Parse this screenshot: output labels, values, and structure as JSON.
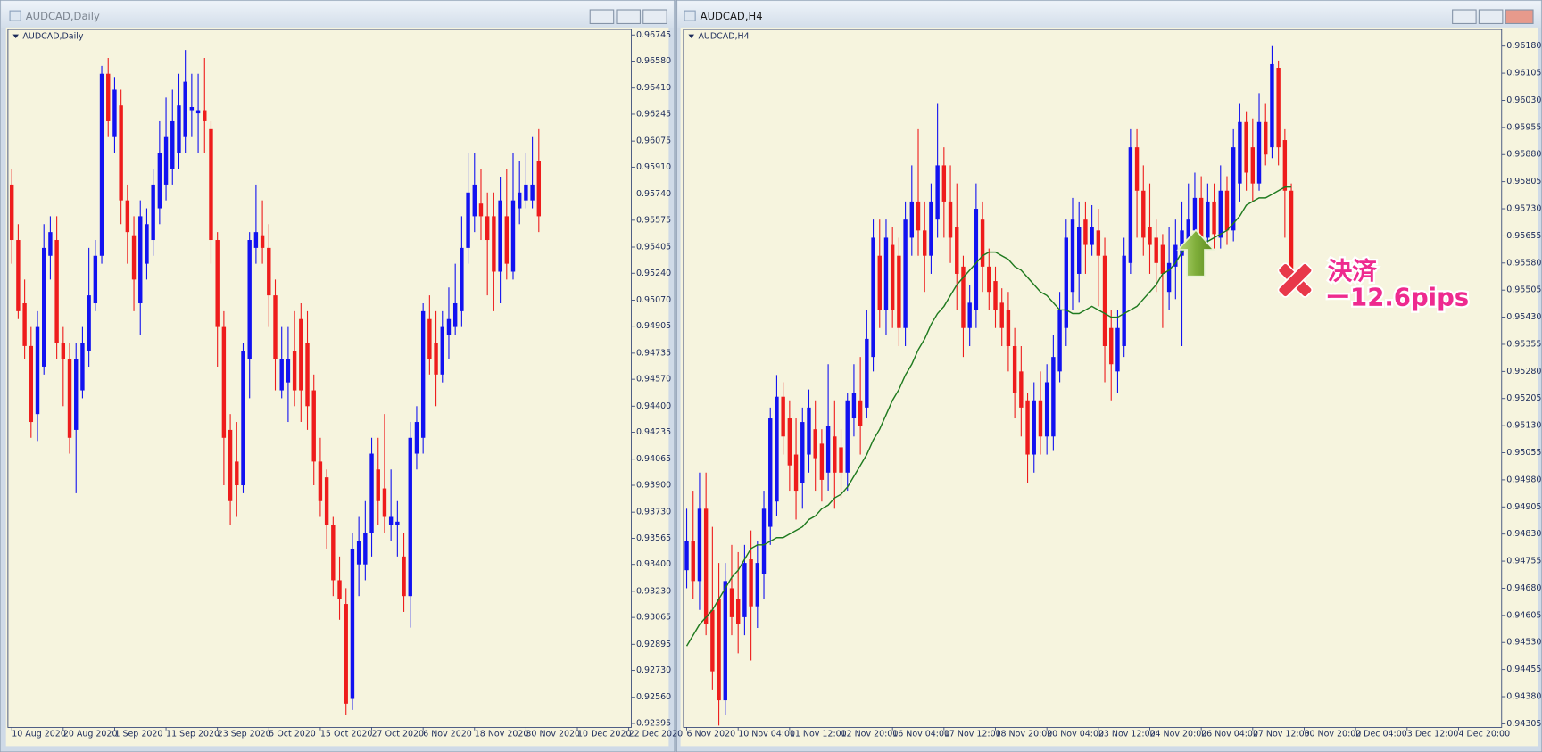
{
  "chart_data": [
    {
      "type": "candlestick",
      "window_title": "AUDCAD,Daily",
      "title": "AUDCAD,Daily",
      "up_color": "#1212f0",
      "down_color": "#ee1c1c",
      "xlim": [
        -0.6,
        96.4
      ],
      "ylim": [
        0.9237,
        0.9678
      ],
      "xticks": [
        {
          "value": 0,
          "label": "10 Aug 2020"
        },
        {
          "value": 8,
          "label": "20 Aug 2020"
        },
        {
          "value": 16,
          "label": "1 Sep 2020"
        },
        {
          "value": 24,
          "label": "11 Sep 2020"
        },
        {
          "value": 32,
          "label": "23 Sep 2020"
        },
        {
          "value": 40,
          "label": "5 Oct 2020"
        },
        {
          "value": 48,
          "label": "15 Oct 2020"
        },
        {
          "value": 56,
          "label": "27 Oct 2020"
        },
        {
          "value": 64,
          "label": "6 Nov 2020"
        },
        {
          "value": 72,
          "label": "18 Nov 2020"
        },
        {
          "value": 80,
          "label": "30 Nov 2020"
        },
        {
          "value": 88,
          "label": "10 Dec 2020"
        },
        {
          "value": 96,
          "label": "22 Dec 2020"
        }
      ],
      "yticks": [
        0.92395,
        {
          "value": 0.9256,
          "label": "0.92560"
        },
        {
          "value": 0.9273,
          "label": "0.92730"
        },
        0.92895,
        0.93065,
        {
          "value": 0.9323,
          "label": "0.93230"
        },
        {
          "value": 0.934,
          "label": "0.93400"
        },
        0.93565,
        {
          "value": 0.9373,
          "label": "0.93730"
        },
        {
          "value": 0.939,
          "label": "0.93900"
        },
        0.94065,
        0.94235,
        {
          "value": 0.944,
          "label": "0.94400"
        },
        {
          "value": 0.9457,
          "label": "0.94570"
        },
        0.94735,
        0.94905,
        {
          "value": 0.9507,
          "label": "0.95070"
        },
        {
          "value": 0.9524,
          "label": "0.95240"
        },
        0.95405,
        0.95575,
        {
          "value": 0.9574,
          "label": "0.95740"
        },
        {
          "value": 0.9591,
          "label": "0.95910"
        },
        0.96075,
        0.96245,
        {
          "value": 0.9641,
          "label": "0.96410"
        },
        {
          "value": 0.9658,
          "label": "0.96580"
        },
        0.96745
      ],
      "open": [
        0.958,
        0.9545,
        0.9505,
        0.9478,
        0.9435,
        0.9465,
        0.9535,
        0.9545,
        0.948,
        0.947,
        0.9425,
        0.945,
        0.9475,
        0.9505,
        0.9535,
        0.965,
        0.961,
        0.963,
        0.957,
        0.9548,
        0.9505,
        0.953,
        0.9545,
        0.9565,
        0.958,
        0.959,
        0.96,
        0.961,
        0.9627,
        0.9625,
        0.9627,
        0.9615,
        0.9545,
        0.949,
        0.9425,
        0.9405,
        0.939,
        0.947,
        0.954,
        0.9548,
        0.954,
        0.951,
        0.945,
        0.9455,
        0.9475,
        0.9495,
        0.948,
        0.945,
        0.9405,
        0.9395,
        0.9365,
        0.933,
        0.9315,
        0.9255,
        0.934,
        0.934,
        0.936,
        0.94,
        0.9388,
        0.9365,
        0.9365,
        0.9345,
        0.932,
        0.941,
        0.942,
        0.9495,
        0.948,
        0.946,
        0.9485,
        0.949,
        0.95,
        0.954,
        0.956,
        0.9568,
        0.956,
        0.956,
        0.9525,
        0.956,
        0.9525,
        0.9565,
        0.957,
        0.957,
        0.9595
      ],
      "high": [
        0.959,
        0.9555,
        0.952,
        0.949,
        0.95,
        0.9555,
        0.956,
        0.956,
        0.949,
        0.948,
        0.948,
        0.949,
        0.954,
        0.9545,
        0.9655,
        0.966,
        0.9648,
        0.964,
        0.958,
        0.956,
        0.957,
        0.9565,
        0.959,
        0.962,
        0.9635,
        0.964,
        0.965,
        0.9665,
        0.965,
        0.965,
        0.966,
        0.962,
        0.955,
        0.95,
        0.9435,
        0.943,
        0.948,
        0.955,
        0.958,
        0.957,
        0.9555,
        0.952,
        0.949,
        0.949,
        0.95,
        0.9505,
        0.95,
        0.946,
        0.942,
        0.94,
        0.937,
        0.9345,
        0.9325,
        0.936,
        0.937,
        0.938,
        0.942,
        0.942,
        0.9435,
        0.94,
        0.938,
        0.936,
        0.943,
        0.944,
        0.9505,
        0.951,
        0.95,
        0.95,
        0.9515,
        0.953,
        0.956,
        0.96,
        0.96,
        0.959,
        0.9575,
        0.9575,
        0.9585,
        0.959,
        0.96,
        0.9595,
        0.96,
        0.961,
        0.9615
      ],
      "low": [
        0.953,
        0.9495,
        0.947,
        0.942,
        0.9418,
        0.946,
        0.952,
        0.947,
        0.944,
        0.941,
        0.9385,
        0.9445,
        0.9465,
        0.95,
        0.953,
        0.961,
        0.96,
        0.9555,
        0.953,
        0.95,
        0.9485,
        0.952,
        0.9535,
        0.9555,
        0.957,
        0.958,
        0.959,
        0.96,
        0.961,
        0.96,
        0.96,
        0.953,
        0.9465,
        0.939,
        0.9365,
        0.937,
        0.9385,
        0.9445,
        0.953,
        0.953,
        0.949,
        0.945,
        0.9445,
        0.943,
        0.944,
        0.943,
        0.9425,
        0.939,
        0.937,
        0.935,
        0.932,
        0.9305,
        0.9245,
        0.9248,
        0.932,
        0.933,
        0.9345,
        0.9365,
        0.936,
        0.9355,
        0.9345,
        0.931,
        0.93,
        0.94,
        0.941,
        0.946,
        0.944,
        0.9455,
        0.947,
        0.9485,
        0.949,
        0.953,
        0.955,
        0.9545,
        0.951,
        0.95,
        0.9505,
        0.952,
        0.952,
        0.9555,
        0.9565,
        0.9565,
        0.955
      ],
      "close": [
        0.9545,
        0.95,
        0.9478,
        0.943,
        0.949,
        0.954,
        0.955,
        0.948,
        0.947,
        0.942,
        0.947,
        0.948,
        0.951,
        0.9535,
        0.965,
        0.962,
        0.964,
        0.957,
        0.955,
        0.952,
        0.956,
        0.9555,
        0.958,
        0.96,
        0.961,
        0.962,
        0.963,
        0.9645,
        0.9629,
        0.9627,
        0.962,
        0.9545,
        0.949,
        0.942,
        0.938,
        0.939,
        0.9475,
        0.9545,
        0.955,
        0.954,
        0.951,
        0.947,
        0.947,
        0.947,
        0.945,
        0.945,
        0.944,
        0.9405,
        0.938,
        0.9365,
        0.933,
        0.9318,
        0.9252,
        0.935,
        0.9355,
        0.936,
        0.941,
        0.938,
        0.937,
        0.937,
        0.9367,
        0.932,
        0.942,
        0.943,
        0.95,
        0.947,
        0.946,
        0.949,
        0.9495,
        0.9505,
        0.954,
        0.9575,
        0.958,
        0.956,
        0.9545,
        0.9525,
        0.957,
        0.953,
        0.957,
        0.9575,
        0.958,
        0.958,
        0.956
      ]
    },
    {
      "type": "candlestick",
      "window_title": "AUDCAD,H4",
      "title": "AUDCAD,H4",
      "up_color": "#1212f0",
      "down_color": "#ee1c1c",
      "xlim": [
        -0.5,
        126.7
      ],
      "ylim": [
        0.94295,
        0.96226
      ],
      "xticks": [
        {
          "value": 0,
          "label": "6 Nov 2020"
        },
        {
          "value": 8,
          "label": "10 Nov 04:00"
        },
        {
          "value": 16,
          "label": "11 Nov 12:00"
        },
        {
          "value": 24,
          "label": "12 Nov 20:00"
        },
        {
          "value": 32,
          "label": "16 Nov 04:00"
        },
        {
          "value": 40,
          "label": "17 Nov 12:00"
        },
        {
          "value": 48,
          "label": "18 Nov 20:00"
        },
        {
          "value": 56,
          "label": "20 Nov 04:00"
        },
        {
          "value": 64,
          "label": "23 Nov 12:00"
        },
        {
          "value": 72,
          "label": "24 Nov 20:00"
        },
        {
          "value": 80,
          "label": "26 Nov 04:00"
        },
        {
          "value": 88,
          "label": "27 Nov 12:00"
        },
        {
          "value": 96,
          "label": "30 Nov 20:00"
        },
        {
          "value": 104,
          "label": "2 Dec 04:00"
        },
        {
          "value": 112,
          "label": "3 Dec 12:00"
        },
        {
          "value": 120,
          "label": "4 Dec 20:00"
        }
      ],
      "yticks": [
        0.94305,
        {
          "value": 0.9438,
          "label": "0.94380"
        },
        0.94455,
        {
          "value": 0.9453,
          "label": "0.94530"
        },
        0.94605,
        {
          "value": 0.9468,
          "label": "0.94680"
        },
        0.94755,
        {
          "value": 0.9483,
          "label": "0.94830"
        },
        0.94905,
        {
          "value": 0.9498,
          "label": "0.94980"
        },
        0.95055,
        {
          "value": 0.9513,
          "label": "0.95130"
        },
        0.95205,
        {
          "value": 0.9528,
          "label": "0.95280"
        },
        0.95355,
        {
          "value": 0.9543,
          "label": "0.95430"
        },
        0.95505,
        {
          "value": 0.9558,
          "label": "0.95580"
        },
        0.95655,
        {
          "value": 0.9573,
          "label": "0.95730"
        },
        0.95805,
        {
          "value": 0.9588,
          "label": "0.95880"
        },
        0.95955,
        {
          "value": 0.9603,
          "label": "0.96030"
        },
        0.96105,
        {
          "value": 0.9618,
          "label": "0.96180"
        }
      ],
      "open": [
        0.9473,
        0.9481,
        0.947,
        0.949,
        0.9462,
        0.9465,
        0.9437,
        0.9468,
        0.9465,
        0.946,
        0.9476,
        0.9463,
        0.9472,
        0.9485,
        0.9492,
        0.9521,
        0.9515,
        0.9505,
        0.9497,
        0.9505,
        0.9512,
        0.9508,
        0.95,
        0.951,
        0.9507,
        0.95,
        0.9515,
        0.952,
        0.9518,
        0.9532,
        0.956,
        0.9545,
        0.9563,
        0.956,
        0.954,
        0.9565,
        0.9575,
        0.9567,
        0.956,
        0.957,
        0.9585,
        0.9575,
        0.9568,
        0.9557,
        0.954,
        0.9545,
        0.957,
        0.9557,
        0.9553,
        0.9547,
        0.9545,
        0.9535,
        0.9528,
        0.952,
        0.9505,
        0.952,
        0.951,
        0.951,
        0.9528,
        0.954,
        0.955,
        0.9555,
        0.957,
        0.9563,
        0.9567,
        0.956,
        0.954,
        0.9528,
        0.9535,
        0.9558,
        0.959,
        0.9578,
        0.9568,
        0.9565,
        0.9563,
        0.955,
        0.9557,
        0.956,
        0.9563,
        0.9567,
        0.9576,
        0.9565,
        0.9575,
        0.9565,
        0.9578,
        0.9567,
        0.958,
        0.9597,
        0.959,
        0.958,
        0.9597,
        0.959,
        0.9612,
        0.9592,
        0.9578
      ],
      "high": [
        0.949,
        0.9495,
        0.95,
        0.95,
        0.9485,
        0.9475,
        0.9475,
        0.948,
        0.9478,
        0.948,
        0.9484,
        0.9481,
        0.9495,
        0.9518,
        0.9527,
        0.9525,
        0.952,
        0.9515,
        0.9518,
        0.9523,
        0.952,
        0.9512,
        0.953,
        0.952,
        0.9512,
        0.9522,
        0.953,
        0.9532,
        0.9545,
        0.957,
        0.957,
        0.957,
        0.9568,
        0.9565,
        0.9575,
        0.9585,
        0.9595,
        0.9575,
        0.958,
        0.9602,
        0.959,
        0.9585,
        0.958,
        0.956,
        0.9552,
        0.958,
        0.9575,
        0.9562,
        0.9557,
        0.9551,
        0.955,
        0.954,
        0.9535,
        0.9522,
        0.9525,
        0.9528,
        0.953,
        0.9538,
        0.955,
        0.957,
        0.9576,
        0.9575,
        0.9575,
        0.9574,
        0.9573,
        0.9565,
        0.9545,
        0.9545,
        0.9565,
        0.9595,
        0.9595,
        0.9585,
        0.958,
        0.957,
        0.9566,
        0.9568,
        0.957,
        0.9575,
        0.958,
        0.9583,
        0.9582,
        0.958,
        0.958,
        0.9585,
        0.9582,
        0.9595,
        0.9602,
        0.96,
        0.9598,
        0.9605,
        0.9602,
        0.9618,
        0.9614,
        0.9595,
        0.958
      ],
      "low": [
        0.9468,
        0.9465,
        0.9462,
        0.9455,
        0.944,
        0.943,
        0.9433,
        0.9455,
        0.945,
        0.9455,
        0.9448,
        0.9457,
        0.9465,
        0.948,
        0.9488,
        0.9505,
        0.9495,
        0.9487,
        0.949,
        0.95,
        0.9495,
        0.9492,
        0.9495,
        0.949,
        0.9493,
        0.9495,
        0.951,
        0.9505,
        0.9515,
        0.9528,
        0.954,
        0.9538,
        0.954,
        0.9535,
        0.9535,
        0.956,
        0.956,
        0.955,
        0.9555,
        0.9565,
        0.9565,
        0.9558,
        0.9545,
        0.9532,
        0.9535,
        0.954,
        0.955,
        0.9545,
        0.954,
        0.9535,
        0.9528,
        0.9515,
        0.951,
        0.9497,
        0.95,
        0.9505,
        0.9505,
        0.9506,
        0.9525,
        0.9535,
        0.9545,
        0.9547,
        0.9555,
        0.956,
        0.9546,
        0.9525,
        0.952,
        0.9522,
        0.9532,
        0.9555,
        0.9565,
        0.956,
        0.9555,
        0.955,
        0.954,
        0.9545,
        0.9548,
        0.9535,
        0.956,
        0.9563,
        0.956,
        0.9562,
        0.9562,
        0.9562,
        0.9563,
        0.9564,
        0.9575,
        0.9578,
        0.9575,
        0.9578,
        0.9585,
        0.9587,
        0.9585,
        0.9565,
        0.955
      ],
      "close": [
        0.9481,
        0.947,
        0.949,
        0.9458,
        0.9445,
        0.9437,
        0.947,
        0.946,
        0.9458,
        0.9475,
        0.9463,
        0.9475,
        0.949,
        0.9515,
        0.9521,
        0.951,
        0.9502,
        0.9495,
        0.9514,
        0.9518,
        0.9504,
        0.9498,
        0.9513,
        0.95,
        0.95,
        0.952,
        0.9522,
        0.9513,
        0.9537,
        0.9565,
        0.9545,
        0.9565,
        0.9545,
        0.954,
        0.957,
        0.9575,
        0.9567,
        0.956,
        0.9575,
        0.9585,
        0.9575,
        0.9565,
        0.9555,
        0.954,
        0.9547,
        0.9573,
        0.9557,
        0.955,
        0.9545,
        0.954,
        0.9535,
        0.9522,
        0.9518,
        0.9505,
        0.952,
        0.951,
        0.9525,
        0.9532,
        0.9545,
        0.9565,
        0.957,
        0.9568,
        0.9563,
        0.9568,
        0.956,
        0.9535,
        0.953,
        0.954,
        0.956,
        0.959,
        0.9578,
        0.9565,
        0.9563,
        0.9558,
        0.9555,
        0.9558,
        0.9563,
        0.9567,
        0.957,
        0.9576,
        0.9565,
        0.9575,
        0.9566,
        0.9578,
        0.9567,
        0.959,
        0.9597,
        0.9583,
        0.958,
        0.9597,
        0.9588,
        0.9613,
        0.959,
        0.9578,
        0.9552
      ],
      "lines": [
        {
          "color": "#1f7a1f",
          "values": [
            0.9452,
            0.9455,
            0.9458,
            0.946,
            0.9462,
            0.9465,
            0.9468,
            0.9471,
            0.9473,
            0.9476,
            0.9479,
            0.948,
            0.948,
            0.9481,
            0.9482,
            0.9482,
            0.9483,
            0.9484,
            0.9485,
            0.9487,
            0.9488,
            0.949,
            0.9491,
            0.9493,
            0.9494,
            0.9496,
            0.9499,
            0.9502,
            0.9505,
            0.9509,
            0.9512,
            0.9516,
            0.952,
            0.9523,
            0.9527,
            0.953,
            0.9534,
            0.9537,
            0.9541,
            0.9544,
            0.9546,
            0.9549,
            0.9552,
            0.9554,
            0.9556,
            0.9558,
            0.956,
            0.9561,
            0.9561,
            0.956,
            0.9559,
            0.9557,
            0.9556,
            0.9554,
            0.9552,
            0.955,
            0.9549,
            0.9547,
            0.9545,
            0.9545,
            0.9544,
            0.9544,
            0.9545,
            0.9546,
            0.9545,
            0.9544,
            0.9543,
            0.9543,
            0.9544,
            0.9545,
            0.9546,
            0.9548,
            0.955,
            0.9552,
            0.9555,
            0.9556,
            0.9558,
            0.9561,
            0.9563,
            0.9563,
            0.9564,
            0.9564,
            0.9565,
            0.9566,
            0.9567,
            0.9569,
            0.9571,
            0.9574,
            0.9575,
            0.9576,
            0.9576,
            0.9577,
            0.9578,
            0.9579,
            0.9579
          ]
        }
      ],
      "annotations": [
        "決済",
        "ー12.6pips"
      ]
    }
  ]
}
